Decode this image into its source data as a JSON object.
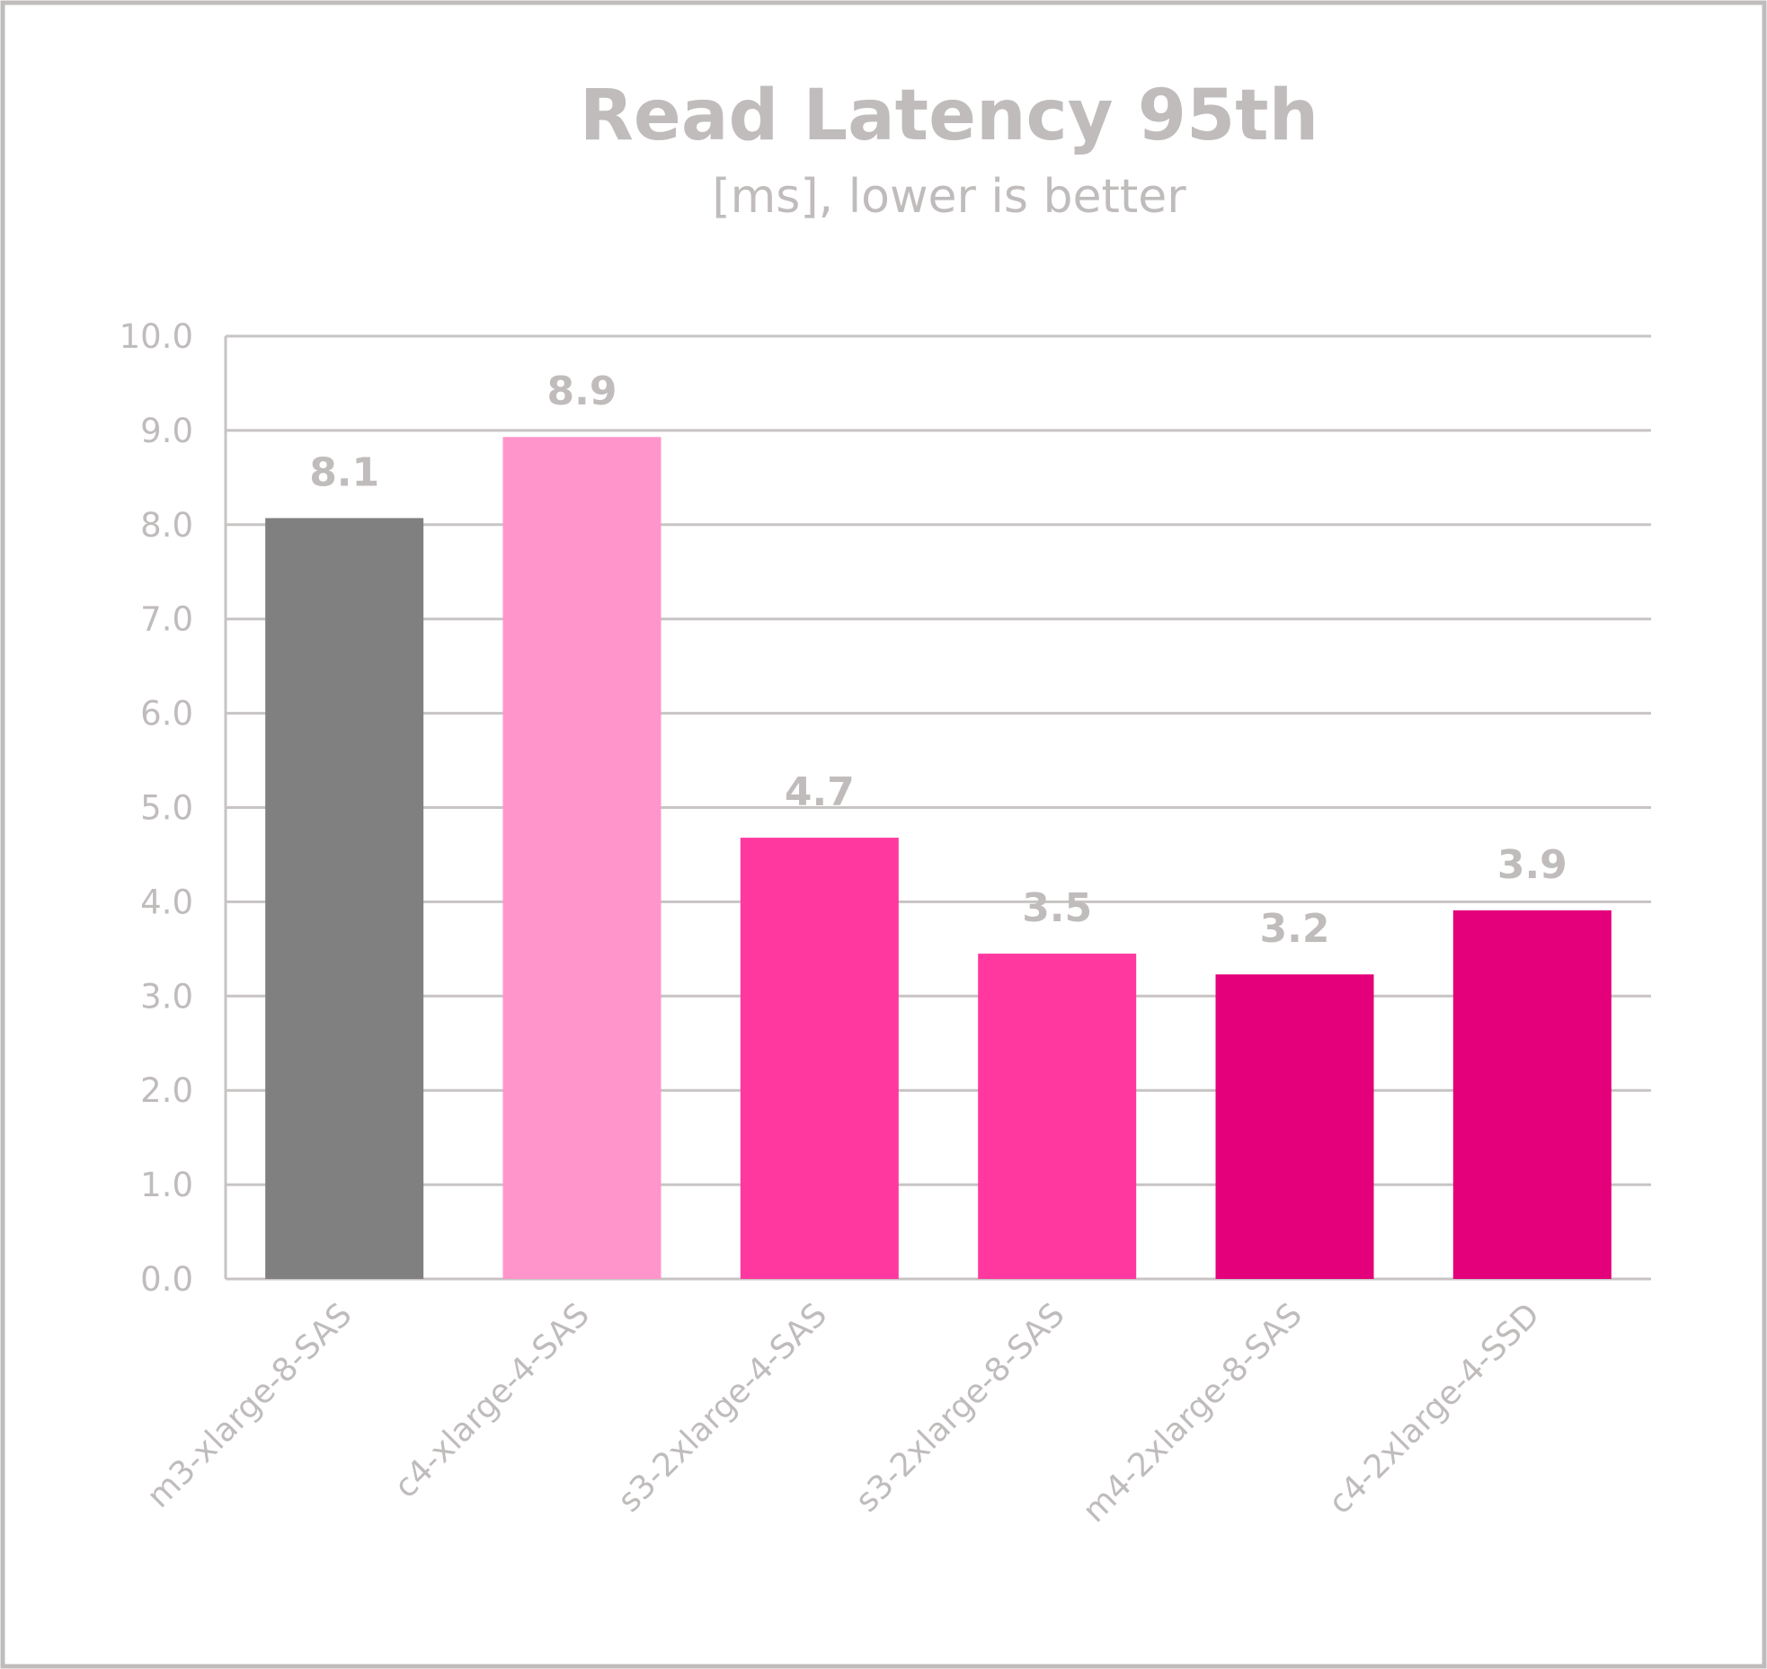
{
  "chart_data": {
    "type": "bar",
    "title": "Read Latency 95th",
    "subtitle": "[ms], lower is better",
    "xlabel": "",
    "ylabel": "",
    "ylim": [
      0,
      10
    ],
    "yticks": [
      "0.0",
      "1.0",
      "2.0",
      "3.0",
      "4.0",
      "5.0",
      "6.0",
      "7.0",
      "8.0",
      "9.0",
      "10.0"
    ],
    "grid": true,
    "categories": [
      "m3-xlarge-8-SAS",
      "c4-xlarge-4-SAS",
      "s3-2xlarge-4-SAS",
      "s3-2xlarge-8-SAS",
      "m4-2xlarge-8-SAS",
      "c4-2xlarge-4-SSD"
    ],
    "values": [
      8.07,
      8.93,
      4.68,
      3.45,
      3.23,
      3.91
    ],
    "data_labels": [
      "8.1",
      "8.9",
      "4.7",
      "3.5",
      "3.2",
      "3.9"
    ],
    "colors": [
      "#808080",
      "#FF95CB",
      "#FF389F",
      "#FF389F",
      "#E3007A",
      "#E3007A"
    ]
  }
}
